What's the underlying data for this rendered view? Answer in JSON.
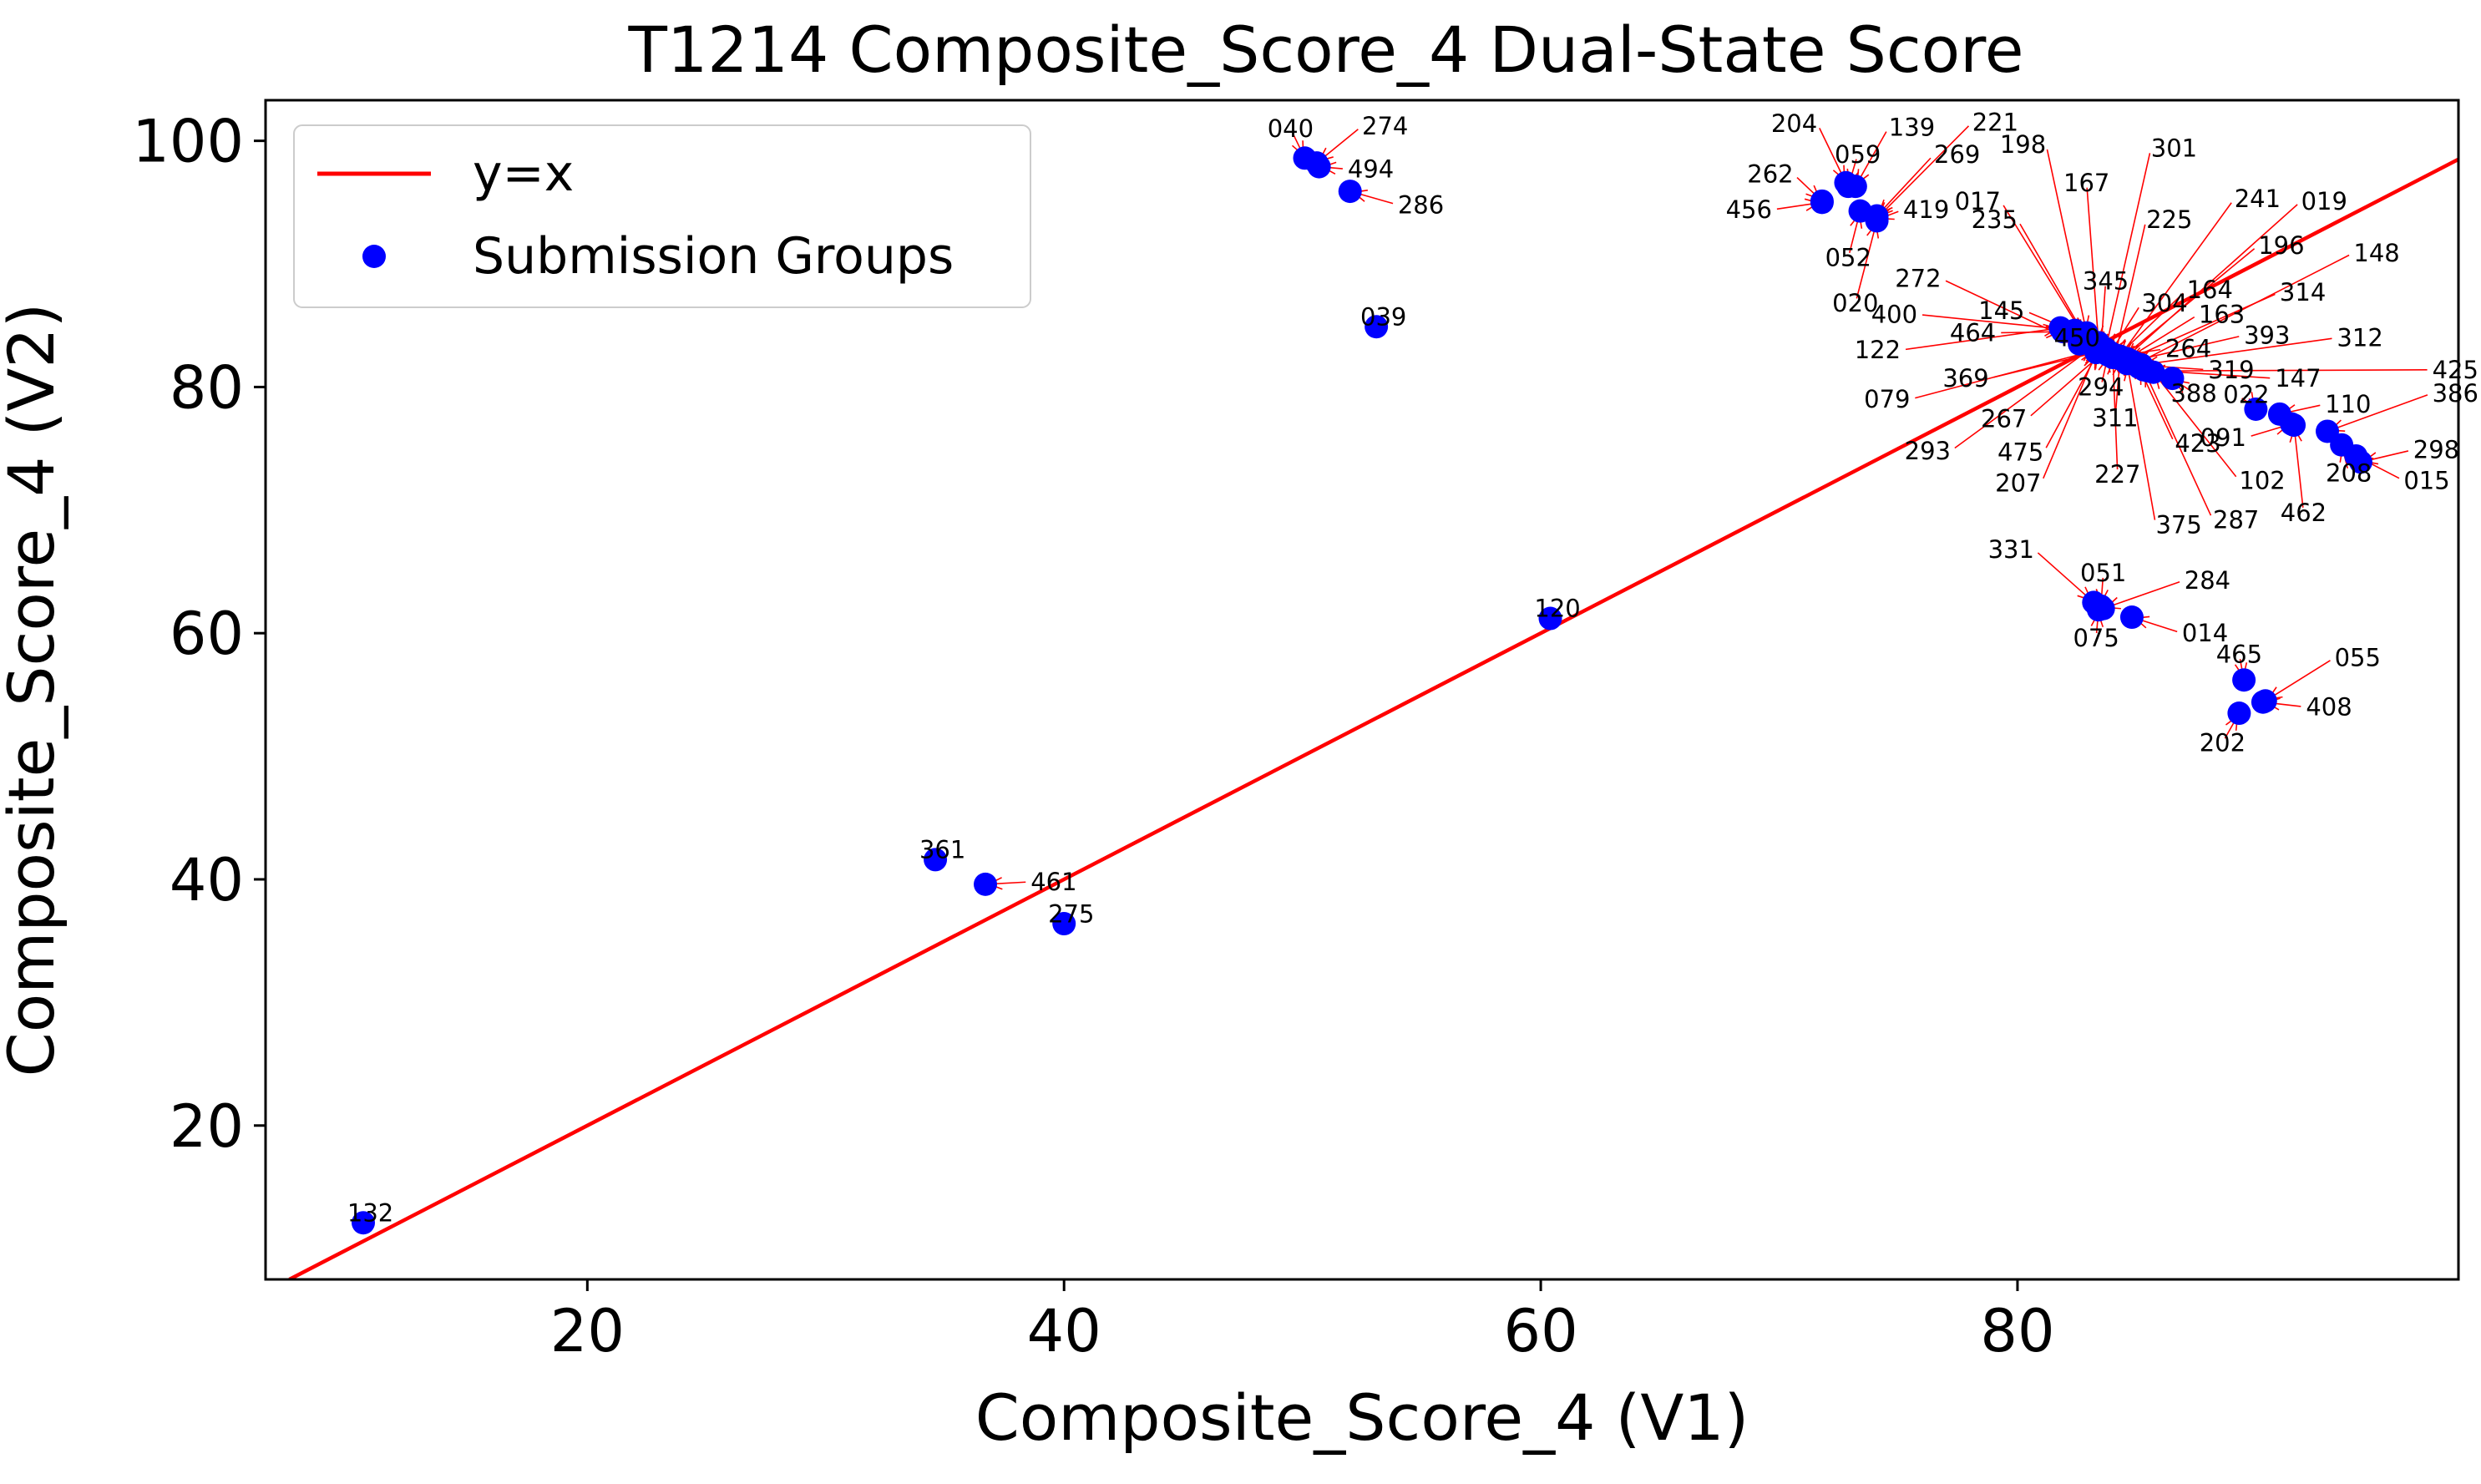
{
  "chart_data": {
    "type": "scatter",
    "title": "T1214 Composite_Score_4 Dual-State Score",
    "xlabel": "Composite_Score_4 (V1)",
    "ylabel": "Composite_Score_4 (V2)",
    "xlim": [
      6.5,
      98.5
    ],
    "ylim": [
      7.5,
      103.3
    ],
    "xticks": [
      20,
      40,
      60,
      80
    ],
    "yticks": [
      20,
      40,
      60,
      80,
      100
    ],
    "grid": false,
    "legend_position": "upper-left",
    "legend": [
      {
        "label": "y=x",
        "marker": "line",
        "color": "#ff0000"
      },
      {
        "label": "Submission Groups",
        "marker": "dot",
        "color": "#0000ff"
      }
    ],
    "reference_line": {
      "label": "y=x",
      "color": "#ff0000"
    },
    "point_color": "#0000ff",
    "arrow_color": "#ff0000",
    "points": [
      {
        "id": "132",
        "x": 10.6,
        "y": 12.1,
        "lx": 10.9,
        "ly": 12.9
      },
      {
        "id": "361",
        "x": 34.6,
        "y": 41.6,
        "lx": 34.9,
        "ly": 42.4
      },
      {
        "id": "461",
        "x": 36.7,
        "y": 39.6,
        "lx": 38.6,
        "ly": 39.8
      },
      {
        "id": "275",
        "x": 40.0,
        "y": 36.4,
        "lx": 40.3,
        "ly": 37.2
      },
      {
        "id": "120",
        "x": 60.4,
        "y": 61.2,
        "lx": 60.7,
        "ly": 62.0
      },
      {
        "id": "039",
        "x": 53.1,
        "y": 84.9,
        "lx": 53.4,
        "ly": 85.7
      },
      {
        "id": "040",
        "x": 50.1,
        "y": 98.6,
        "lx": 49.5,
        "ly": 101.0
      },
      {
        "id": "274",
        "x": 50.6,
        "y": 98.2,
        "lx": 52.5,
        "ly": 101.2
      },
      {
        "id": "494",
        "x": 50.7,
        "y": 97.9,
        "lx": 51.9,
        "ly": 97.7
      },
      {
        "id": "286",
        "x": 52.0,
        "y": 95.9,
        "lx": 54.0,
        "ly": 94.8
      },
      {
        "id": "204",
        "x": 72.8,
        "y": 96.6,
        "lx": 71.6,
        "ly": 101.4
      },
      {
        "id": "139",
        "x": 73.2,
        "y": 96.3,
        "lx": 74.6,
        "ly": 101.1
      },
      {
        "id": "221",
        "x": 74.1,
        "y": 93.7,
        "lx": 78.1,
        "ly": 101.5
      },
      {
        "id": "059",
        "x": 72.9,
        "y": 96.3,
        "lx": 73.3,
        "ly": 98.9
      },
      {
        "id": "269",
        "x": 74.1,
        "y": 93.9,
        "lx": 76.5,
        "ly": 98.9
      },
      {
        "id": "262",
        "x": 71.8,
        "y": 95.1,
        "lx": 70.6,
        "ly": 97.3
      },
      {
        "id": "456",
        "x": 71.8,
        "y": 95.0,
        "lx": 69.7,
        "ly": 94.4
      },
      {
        "id": "419",
        "x": 74.1,
        "y": 93.6,
        "lx": 75.2,
        "ly": 94.4
      },
      {
        "id": "052",
        "x": 73.4,
        "y": 94.3,
        "lx": 72.9,
        "ly": 90.5
      },
      {
        "id": "020",
        "x": 74.1,
        "y": 93.5,
        "lx": 73.2,
        "ly": 86.8
      },
      {
        "id": "198",
        "x": 82.9,
        "y": 84.4,
        "lx": 81.2,
        "ly": 99.7
      },
      {
        "id": "301",
        "x": 83.7,
        "y": 83.1,
        "lx": 85.6,
        "ly": 99.4
      },
      {
        "id": "167",
        "x": 83.4,
        "y": 83.6,
        "lx": 82.9,
        "ly": 96.6
      },
      {
        "id": "017",
        "x": 82.8,
        "y": 84.1,
        "lx": 79.3,
        "ly": 95.1
      },
      {
        "id": "235",
        "x": 82.9,
        "y": 83.9,
        "lx": 80.0,
        "ly": 93.6
      },
      {
        "id": "225",
        "x": 84.1,
        "y": 82.6,
        "lx": 85.4,
        "ly": 93.6
      },
      {
        "id": "241",
        "x": 84.3,
        "y": 82.5,
        "lx": 89.1,
        "ly": 95.3
      },
      {
        "id": "019",
        "x": 84.5,
        "y": 82.3,
        "lx": 91.9,
        "ly": 95.1
      },
      {
        "id": "196",
        "x": 84.4,
        "y": 82.4,
        "lx": 90.1,
        "ly": 91.5
      },
      {
        "id": "148",
        "x": 85.0,
        "y": 81.9,
        "lx": 94.1,
        "ly": 90.9
      },
      {
        "id": "272",
        "x": 82.6,
        "y": 83.5,
        "lx": 76.8,
        "ly": 88.8
      },
      {
        "id": "345",
        "x": 83.5,
        "y": 83.0,
        "lx": 83.7,
        "ly": 88.6
      },
      {
        "id": "164",
        "x": 84.2,
        "y": 82.5,
        "lx": 87.1,
        "ly": 87.9
      },
      {
        "id": "314",
        "x": 84.6,
        "y": 82.2,
        "lx": 91.0,
        "ly": 87.7
      },
      {
        "id": "304",
        "x": 83.9,
        "y": 82.8,
        "lx": 85.2,
        "ly": 86.8
      },
      {
        "id": "163",
        "x": 84.6,
        "y": 82.3,
        "lx": 87.6,
        "ly": 85.9
      },
      {
        "id": "400",
        "x": 82.4,
        "y": 84.6,
        "lx": 75.8,
        "ly": 85.9
      },
      {
        "id": "145",
        "x": 82.5,
        "y": 84.4,
        "lx": 80.3,
        "ly": 86.2
      },
      {
        "id": "464",
        "x": 81.9,
        "y": 84.5,
        "lx": 79.1,
        "ly": 84.4
      },
      {
        "id": "450",
        "x": 83.0,
        "y": 83.6,
        "lx": 82.5,
        "ly": 84.0
      },
      {
        "id": "393",
        "x": 84.8,
        "y": 82.1,
        "lx": 89.5,
        "ly": 84.2
      },
      {
        "id": "312",
        "x": 85.2,
        "y": 81.8,
        "lx": 93.4,
        "ly": 84.0
      },
      {
        "id": "264",
        "x": 84.1,
        "y": 82.5,
        "lx": 86.2,
        "ly": 83.1
      },
      {
        "id": "122",
        "x": 81.8,
        "y": 84.8,
        "lx": 75.1,
        "ly": 83.0
      },
      {
        "id": "319",
        "x": 85.0,
        "y": 81.8,
        "lx": 88.0,
        "ly": 81.4
      },
      {
        "id": "425",
        "x": 85.5,
        "y": 81.3,
        "lx": 97.4,
        "ly": 81.4
      },
      {
        "id": "147",
        "x": 85.3,
        "y": 81.4,
        "lx": 90.8,
        "ly": 80.7
      },
      {
        "id": "369",
        "x": 83.5,
        "y": 82.9,
        "lx": 78.8,
        "ly": 80.7
      },
      {
        "id": "294",
        "x": 83.8,
        "y": 82.6,
        "lx": 83.5,
        "ly": 80.0
      },
      {
        "id": "386",
        "x": 93.0,
        "y": 76.4,
        "lx": 97.4,
        "ly": 79.5
      },
      {
        "id": "022",
        "x": 90.0,
        "y": 78.2,
        "lx": 89.6,
        "ly": 79.4
      },
      {
        "id": "388",
        "x": 86.5,
        "y": 80.7,
        "lx": 87.4,
        "ly": 79.5
      },
      {
        "id": "079",
        "x": 83.3,
        "y": 83.0,
        "lx": 75.5,
        "ly": 79.0
      },
      {
        "id": "110",
        "x": 91.0,
        "y": 77.8,
        "lx": 92.9,
        "ly": 78.6
      },
      {
        "id": "311",
        "x": 84.3,
        "y": 82.3,
        "lx": 84.1,
        "ly": 77.5
      },
      {
        "id": "267",
        "x": 83.6,
        "y": 82.8,
        "lx": 80.4,
        "ly": 77.4
      },
      {
        "id": "091",
        "x": 91.5,
        "y": 77.0,
        "lx": 89.6,
        "ly": 75.9
      },
      {
        "id": "298",
        "x": 94.4,
        "y": 73.9,
        "lx": 96.6,
        "ly": 74.9
      },
      {
        "id": "423",
        "x": 85.1,
        "y": 81.6,
        "lx": 86.6,
        "ly": 75.4
      },
      {
        "id": "293",
        "x": 83.2,
        "y": 83.3,
        "lx": 77.2,
        "ly": 74.8
      },
      {
        "id": "475",
        "x": 83.4,
        "y": 82.9,
        "lx": 81.1,
        "ly": 74.7
      },
      {
        "id": "208",
        "x": 93.6,
        "y": 75.3,
        "lx": 93.9,
        "ly": 73.0
      },
      {
        "id": "227",
        "x": 84.0,
        "y": 82.4,
        "lx": 84.2,
        "ly": 72.9
      },
      {
        "id": "015",
        "x": 94.2,
        "y": 74.4,
        "lx": 96.2,
        "ly": 72.4
      },
      {
        "id": "207",
        "x": 83.3,
        "y": 82.8,
        "lx": 81.0,
        "ly": 72.2
      },
      {
        "id": "102",
        "x": 85.7,
        "y": 81.2,
        "lx": 89.3,
        "ly": 72.4
      },
      {
        "id": "462",
        "x": 91.6,
        "y": 76.9,
        "lx": 92.0,
        "ly": 69.8
      },
      {
        "id": "287",
        "x": 85.3,
        "y": 81.4,
        "lx": 88.2,
        "ly": 69.2
      },
      {
        "id": "375",
        "x": 84.6,
        "y": 81.9,
        "lx": 85.8,
        "ly": 68.8
      },
      {
        "id": "331",
        "x": 83.2,
        "y": 62.5,
        "lx": 80.7,
        "ly": 66.8
      },
      {
        "id": "051",
        "x": 83.5,
        "y": 62.2,
        "lx": 83.6,
        "ly": 64.9
      },
      {
        "id": "284",
        "x": 83.6,
        "y": 62.0,
        "lx": 87.0,
        "ly": 64.3
      },
      {
        "id": "075",
        "x": 83.4,
        "y": 61.9,
        "lx": 83.3,
        "ly": 59.6
      },
      {
        "id": "014",
        "x": 84.8,
        "y": 61.3,
        "lx": 86.9,
        "ly": 60.0
      },
      {
        "id": "465",
        "x": 89.5,
        "y": 56.2,
        "lx": 89.3,
        "ly": 58.3
      },
      {
        "id": "055",
        "x": 90.4,
        "y": 54.5,
        "lx": 93.3,
        "ly": 58.0
      },
      {
        "id": "408",
        "x": 90.3,
        "y": 54.4,
        "lx": 92.1,
        "ly": 54.0
      },
      {
        "id": "202",
        "x": 89.3,
        "y": 53.5,
        "lx": 88.6,
        "ly": 51.1
      }
    ]
  }
}
